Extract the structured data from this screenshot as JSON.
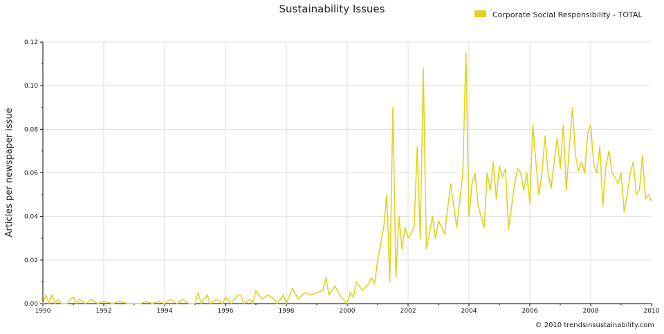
{
  "chart_data": {
    "type": "line",
    "title": "Sustainability Issues",
    "xlabel": "",
    "ylabel": "Articles per newspaper issue",
    "xlim": [
      1990,
      2010
    ],
    "ylim": [
      0,
      0.12
    ],
    "x_ticks": [
      "1990",
      "1992",
      "1994",
      "1996",
      "1998",
      "2000",
      "2002",
      "2004",
      "2006",
      "2008",
      "2010"
    ],
    "y_ticks": [
      "0.00",
      "0.02",
      "0.04",
      "0.06",
      "0.08",
      "0.10",
      "0.12"
    ],
    "grid": true,
    "legend_position": "top-right",
    "credit": "© 2010 trendsinsustainability.com",
    "series": [
      {
        "name": "Corporate Social Responsibility - TOTAL",
        "color": "#e3d21c",
        "x": [
          1990.0,
          1990.1,
          1990.2,
          1990.3,
          1990.4,
          1990.5,
          1990.6,
          1990.8,
          1990.9,
          1991.0,
          1991.1,
          1991.2,
          1991.4,
          1991.6,
          1991.8,
          1992.0,
          1992.3,
          1992.5,
          1992.8,
          1993.0,
          1993.2,
          1993.4,
          1993.6,
          1993.8,
          1994.0,
          1994.2,
          1994.4,
          1994.6,
          1994.8,
          1995.0,
          1995.1,
          1995.2,
          1995.4,
          1995.5,
          1995.7,
          1995.9,
          1996.0,
          1996.2,
          1996.4,
          1996.5,
          1996.6,
          1996.8,
          1996.9,
          1997.0,
          1997.2,
          1997.4,
          1997.6,
          1997.7,
          1997.9,
          1998.0,
          1998.2,
          1998.4,
          1998.6,
          1998.8,
          1999.0,
          1999.2,
          1999.3,
          1999.4,
          1999.6,
          1999.8,
          2000.0,
          2000.1,
          2000.2,
          2000.3,
          2000.5,
          2000.7,
          2000.8,
          2000.9,
          2001.0,
          2001.2,
          2001.3,
          2001.4,
          2001.5,
          2001.6,
          2001.7,
          2001.8,
          2001.9,
          2002.0,
          2002.2,
          2002.3,
          2002.4,
          2002.5,
          2002.6,
          2002.7,
          2002.8,
          2002.9,
          2003.0,
          2003.2,
          2003.4,
          2003.6,
          2003.8,
          2003.9,
          2004.0,
          2004.1,
          2004.2,
          2004.3,
          2004.4,
          2004.5,
          2004.6,
          2004.7,
          2004.8,
          2004.9,
          2005.0,
          2005.1,
          2005.2,
          2005.3,
          2005.5,
          2005.6,
          2005.7,
          2005.8,
          2005.9,
          2006.0,
          2006.1,
          2006.2,
          2006.3,
          2006.4,
          2006.5,
          2006.6,
          2006.7,
          2006.8,
          2006.9,
          2007.0,
          2007.1,
          2007.2,
          2007.3,
          2007.4,
          2007.5,
          2007.6,
          2007.7,
          2007.8,
          2007.9,
          2008.0,
          2008.1,
          2008.2,
          2008.3,
          2008.4,
          2008.5,
          2008.6,
          2008.7,
          2008.8,
          2008.9,
          2009.0,
          2009.1,
          2009.2,
          2009.3,
          2009.4,
          2009.5,
          2009.6,
          2009.7,
          2009.8,
          2009.9,
          2010.0
        ],
        "values": [
          0.0,
          0.004,
          0.0,
          0.004,
          0.0,
          0.002,
          0.0,
          0.0,
          0.002,
          0.003,
          0.0,
          0.002,
          0.0,
          0.002,
          0.0,
          0.001,
          0.0,
          0.001,
          0.0,
          0.0,
          0.0,
          0.001,
          0.0,
          0.001,
          0.0,
          0.002,
          0.0,
          0.002,
          0.0,
          0.0,
          0.005,
          0.0,
          0.004,
          0.0,
          0.002,
          0.0,
          0.003,
          0.0,
          0.004,
          0.004,
          0.0,
          0.002,
          0.0,
          0.006,
          0.002,
          0.004,
          0.002,
          0.0,
          0.004,
          0.0,
          0.007,
          0.002,
          0.005,
          0.004,
          0.005,
          0.006,
          0.012,
          0.004,
          0.008,
          0.003,
          0.0,
          0.005,
          0.003,
          0.01,
          0.006,
          0.009,
          0.012,
          0.009,
          0.02,
          0.035,
          0.05,
          0.01,
          0.09,
          0.012,
          0.04,
          0.025,
          0.035,
          0.03,
          0.035,
          0.072,
          0.03,
          0.108,
          0.025,
          0.032,
          0.04,
          0.03,
          0.038,
          0.032,
          0.055,
          0.035,
          0.06,
          0.115,
          0.04,
          0.055,
          0.06,
          0.045,
          0.04,
          0.035,
          0.06,
          0.052,
          0.065,
          0.048,
          0.063,
          0.058,
          0.062,
          0.034,
          0.055,
          0.062,
          0.06,
          0.052,
          0.06,
          0.046,
          0.082,
          0.065,
          0.05,
          0.06,
          0.077,
          0.06,
          0.053,
          0.065,
          0.076,
          0.062,
          0.082,
          0.052,
          0.072,
          0.09,
          0.068,
          0.061,
          0.065,
          0.06,
          0.078,
          0.082,
          0.064,
          0.06,
          0.072,
          0.045,
          0.063,
          0.07,
          0.06,
          0.058,
          0.055,
          0.06,
          0.042,
          0.05,
          0.06,
          0.065,
          0.05,
          0.052,
          0.068,
          0.048,
          0.05,
          0.047
        ]
      }
    ]
  }
}
